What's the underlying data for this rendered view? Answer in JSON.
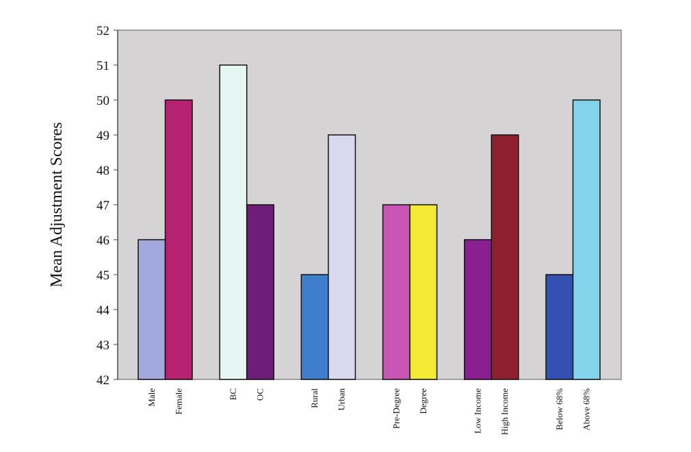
{
  "chart_data": {
    "type": "bar",
    "ylabel": "Mean Adjustment Scores",
    "ylim": [
      42,
      52
    ],
    "yticks": [
      42,
      43,
      44,
      45,
      46,
      47,
      48,
      49,
      50,
      51,
      52
    ],
    "grid": false,
    "plot_background": "#d6d3d4",
    "groups": [
      {
        "bars": [
          {
            "label": "Male",
            "value": 46,
            "color": "#a2a9dd"
          },
          {
            "label": "Female",
            "value": 50,
            "color": "#b7216f"
          }
        ]
      },
      {
        "bars": [
          {
            "label": "BC",
            "value": 51,
            "color": "#e6f6f2"
          },
          {
            "label": "OC",
            "value": 47,
            "color": "#6e1d78"
          }
        ]
      },
      {
        "bars": [
          {
            "label": "Rural",
            "value": 45,
            "color": "#3d7fcd"
          },
          {
            "label": "Urban",
            "value": 49,
            "color": "#d8d9ef"
          }
        ]
      },
      {
        "bars": [
          {
            "label": "Pre-Degree",
            "value": 47,
            "color": "#c856b4"
          },
          {
            "label": "Degree",
            "value": 47,
            "color": "#f2e935"
          }
        ]
      },
      {
        "bars": [
          {
            "label": "Low Income",
            "value": 46,
            "color": "#891f8e"
          },
          {
            "label": "High Income",
            "value": 49,
            "color": "#8e1f2d"
          }
        ]
      },
      {
        "bars": [
          {
            "label": "Below 68%",
            "value": 45,
            "color": "#3451b2"
          },
          {
            "label": "Above 68%",
            "value": 50,
            "color": "#82d4ea"
          }
        ]
      }
    ]
  }
}
